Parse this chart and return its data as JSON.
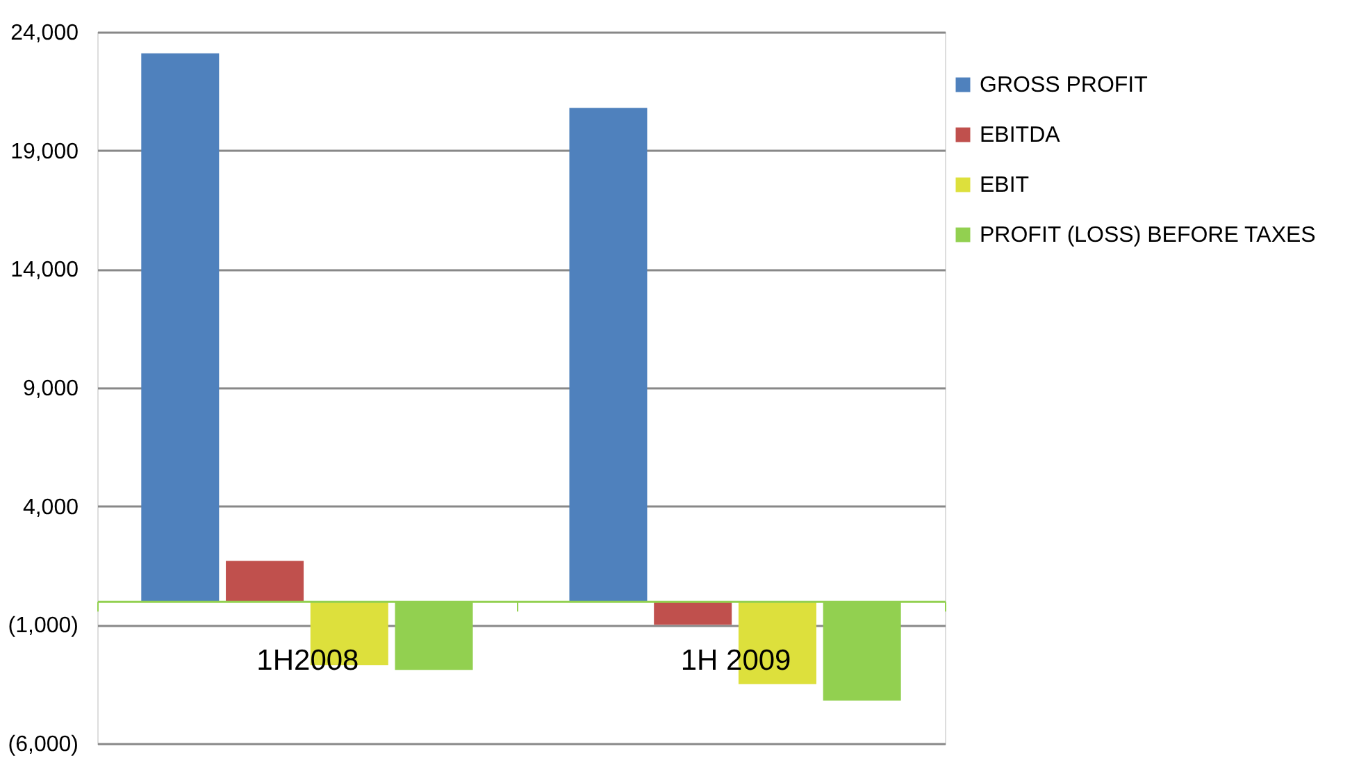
{
  "chart_data": {
    "type": "bar",
    "categories": [
      "1H2008",
      "1H 2009"
    ],
    "series": [
      {
        "name": "GROSS PROFIT",
        "color": "#4f81bd",
        "values": [
          23100,
          20800
        ]
      },
      {
        "name": "EBITDA",
        "color": "#c0504d",
        "values": [
          1700,
          -1000
        ]
      },
      {
        "name": "EBIT",
        "color": "#dde03c",
        "values": [
          -2700,
          -3500
        ]
      },
      {
        "name": "PROFIT (LOSS) BEFORE TAXES",
        "color": "#92d050",
        "values": [
          -2900,
          -4200
        ]
      }
    ],
    "ylim": [
      -6000,
      24000
    ],
    "yticks": [
      {
        "value": -6000,
        "label": "(6,000)"
      },
      {
        "value": -1000,
        "label": "(1,000)"
      },
      {
        "value": 4000,
        "label": "4,000"
      },
      {
        "value": 9000,
        "label": "9,000"
      },
      {
        "value": 14000,
        "label": "14,000"
      },
      {
        "value": 19000,
        "label": "19,000"
      },
      {
        "value": 24000,
        "label": "24,000"
      }
    ],
    "grid": "y",
    "legend": "right"
  }
}
